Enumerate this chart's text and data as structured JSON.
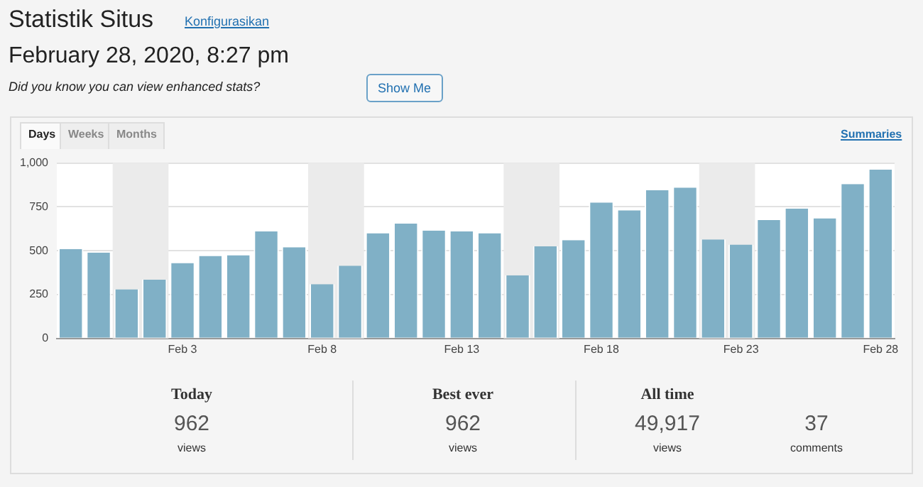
{
  "chart_data": [
    {
      "type": "bar",
      "title": "Statistik Situs",
      "subtitle": "February 28, 2020, 8:27 pm",
      "annotations": [
        "Konfigurasikan",
        "Did you know you can view enhanced stats?",
        "Show Me",
        "Days",
        "Weeks",
        "Months",
        "Summaries"
      ],
      "x": [
        "2020-01-30",
        "2020-01-31",
        "2020-02-01",
        "2020-02-02",
        "2020-02-03",
        "2020-02-04",
        "2020-02-05",
        "2020-02-06",
        "2020-02-07",
        "2020-02-08",
        "2020-02-09",
        "2020-02-10",
        "2020-02-11",
        "2020-02-12",
        "2020-02-13",
        "2020-02-14",
        "2020-02-15",
        "2020-02-16",
        "2020-02-17",
        "2020-02-18",
        "2020-02-19",
        "2020-02-20",
        "2020-02-21",
        "2020-02-22",
        "2020-02-23",
        "2020-02-24",
        "2020-02-25",
        "2020-02-26",
        "2020-02-27",
        "2020-02-28"
      ],
      "values": [
        510,
        490,
        280,
        335,
        430,
        470,
        475,
        610,
        520,
        310,
        415,
        600,
        655,
        615,
        610,
        600,
        360,
        525,
        560,
        775,
        730,
        845,
        860,
        565,
        535,
        675,
        740,
        685,
        880,
        962
      ],
      "color": "#80b0c6",
      "xlim": [
        "2020-01-29T12:00",
        "2020-02-28T12:00"
      ],
      "xticks": [
        {
          "value": "2020-02-03",
          "label": "Feb 3"
        },
        {
          "value": "2020-02-08",
          "label": "Feb 8"
        },
        {
          "value": "2020-02-13",
          "label": "Feb 13"
        },
        {
          "value": "2020-02-18",
          "label": "Feb 18"
        },
        {
          "value": "2020-02-23",
          "label": "Feb 23"
        },
        {
          "value": "2020-02-28",
          "label": "Feb 28"
        }
      ],
      "ylim": [
        0,
        1000
      ],
      "yticks": [
        0,
        250,
        500,
        750,
        {
          "value": 1000,
          "label": "1,000"
        }
      ],
      "grid": "y",
      "bands": [
        {
          "axis": "x",
          "from": "2020-01-31T12:00",
          "to": "2020-02-02T12:00",
          "color": "#ebebeb"
        },
        {
          "axis": "x",
          "from": "2020-02-07T12:00",
          "to": "2020-02-09T12:00",
          "color": "#ebebeb"
        },
        {
          "axis": "x",
          "from": "2020-02-14T12:00",
          "to": "2020-02-16T12:00",
          "color": "#ebebeb"
        },
        {
          "axis": "x",
          "from": "2020-02-21T12:00",
          "to": "2020-02-23T12:00",
          "color": "#ebebeb"
        }
      ]
    },
    {
      "type": "other",
      "annotations": [
        "Today",
        "962",
        "views",
        "Best ever",
        "962",
        "views",
        "All time",
        "49,917",
        "views",
        "37",
        "comments"
      ]
    }
  ]
}
